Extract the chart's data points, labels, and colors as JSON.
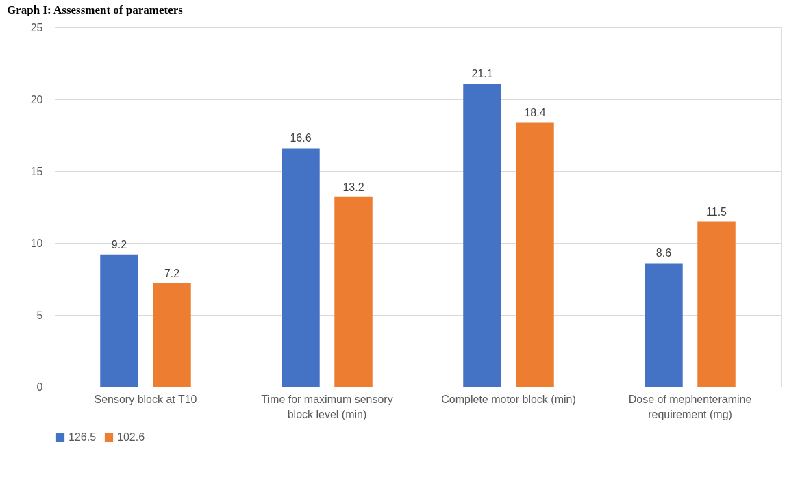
{
  "chart_data": {
    "type": "bar",
    "title": "Graph I: Assessment of parameters",
    "categories": [
      "Sensory block at T10",
      "Time for maximum sensory block level (min)",
      "Complete motor block (min)",
      "Dose of mephenteramine requirement (mg)"
    ],
    "series": [
      {
        "name": "126.5",
        "color": "#4472c4",
        "values": [
          9.2,
          16.6,
          21.1,
          8.6
        ]
      },
      {
        "name": "102.6",
        "color": "#ed7d31",
        "values": [
          7.2,
          13.2,
          18.4,
          11.5
        ]
      }
    ],
    "ylim": [
      0,
      25
    ],
    "yticks": [
      0,
      5,
      10,
      15,
      20,
      25
    ],
    "grid": "y",
    "legend": "bottom",
    "data_labels": true
  }
}
